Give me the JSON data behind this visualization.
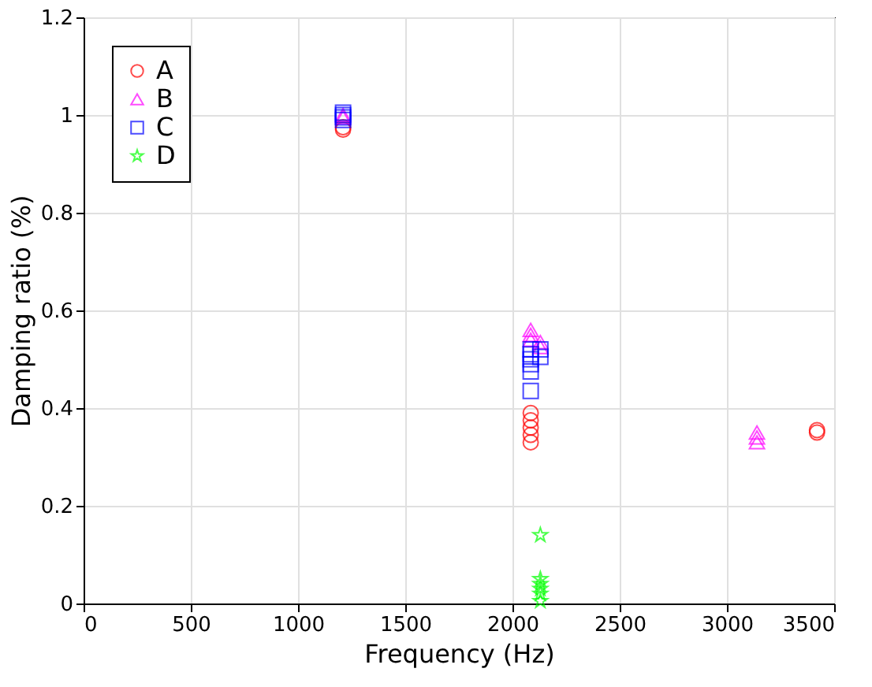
{
  "chart_data": {
    "type": "scatter",
    "xlabel": "Frequency (Hz)",
    "ylabel": "Damping ratio (%)",
    "xlim": [
      0,
      3500
    ],
    "ylim": [
      0,
      1.2
    ],
    "xticks": [
      0,
      500,
      1000,
      1500,
      2000,
      2500,
      3000,
      3500
    ],
    "yticks": [
      0,
      0.2,
      0.4,
      0.6,
      0.8,
      1,
      1.2
    ],
    "grid": true,
    "legend": "top left",
    "series": [
      {
        "name": "A",
        "color": "#ff0000",
        "marker": "circle",
        "x": [
          1210,
          1210,
          2085,
          2085,
          2085,
          2085,
          2085,
          3420,
          3420
        ],
        "values": [
          0.97,
          0.975,
          0.39,
          0.375,
          0.36,
          0.345,
          0.33,
          0.355,
          0.35
        ]
      },
      {
        "name": "B",
        "color": "#ff00ff",
        "marker": "triangle",
        "x": [
          1210,
          1210,
          2085,
          2085,
          2085,
          2130,
          2130,
          3140,
          3140,
          3140
        ],
        "values": [
          0.995,
          1.0,
          0.56,
          0.55,
          0.54,
          0.535,
          0.525,
          0.35,
          0.34,
          0.33
        ]
      },
      {
        "name": "C",
        "color": "#0000ff",
        "marker": "square",
        "x": [
          1210,
          1210,
          1210,
          1210,
          2085,
          2085,
          2085,
          2085,
          2085,
          2085,
          2130,
          2130
        ],
        "values": [
          1.0,
          1.005,
          0.995,
          0.99,
          0.52,
          0.51,
          0.5,
          0.49,
          0.475,
          0.435,
          0.52,
          0.505
        ]
      },
      {
        "name": "D",
        "color": "#00ff00",
        "marker": "star",
        "x": [
          2130,
          2130,
          2130,
          2130,
          2130,
          2130
        ],
        "values": [
          0.14,
          0.05,
          0.04,
          0.03,
          0.02,
          0.005
        ]
      }
    ]
  }
}
